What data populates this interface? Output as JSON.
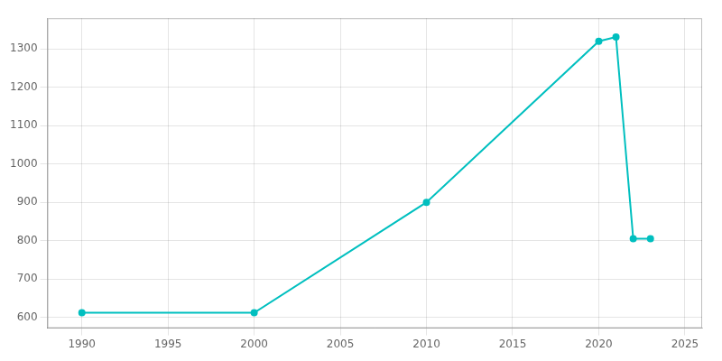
{
  "chart_data": {
    "type": "line",
    "x": [
      1990,
      2000,
      2010,
      2020,
      2021,
      2022,
      2023
    ],
    "values": [
      612,
      612,
      900,
      1320,
      1331,
      805,
      805
    ],
    "color": "#00BFBF",
    "marker": "circle",
    "xlim": [
      1988,
      2026
    ],
    "ylim": [
      572,
      1380
    ],
    "xticks": [
      1990,
      1995,
      2000,
      2005,
      2010,
      2015,
      2020,
      2025
    ],
    "yticks": [
      600,
      700,
      800,
      900,
      1000,
      1100,
      1200,
      1300
    ],
    "grid": true
  }
}
